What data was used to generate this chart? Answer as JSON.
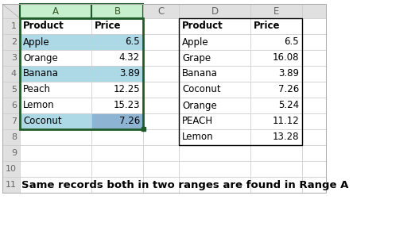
{
  "col_headers": [
    "A",
    "B",
    "C",
    "D",
    "E"
  ],
  "range_a_data": [
    [
      "Apple",
      "6.5"
    ],
    [
      "Orange",
      "4.32"
    ],
    [
      "Banana",
      "3.89"
    ],
    [
      "Peach",
      "12.25"
    ],
    [
      "Lemon",
      "15.23"
    ],
    [
      "Coconut",
      "7.26"
    ]
  ],
  "range_b_data": [
    [
      "Apple",
      "6.5"
    ],
    [
      "Grape",
      "16.08"
    ],
    [
      "Banana",
      "3.89"
    ],
    [
      "Coconut",
      "7.26"
    ],
    [
      "Orange",
      "5.24"
    ],
    [
      "PEACH",
      "11.12"
    ],
    [
      "Lemon",
      "13.28"
    ]
  ],
  "highlight_rows_a": [
    0,
    2,
    5
  ],
  "caption": "Same records both in two ranges are found in Range A",
  "light_blue": "#ADD8E6",
  "medium_blue": "#8EB4D3",
  "header_green_bg": "#C6EFCE",
  "header_green_text": "#375623",
  "selection_green": "#1F5C29",
  "grid_color": "#CCCCCC",
  "header_bg": "#E0E0E0",
  "background": "#FFFFFF",
  "row_num_color": "#666666"
}
